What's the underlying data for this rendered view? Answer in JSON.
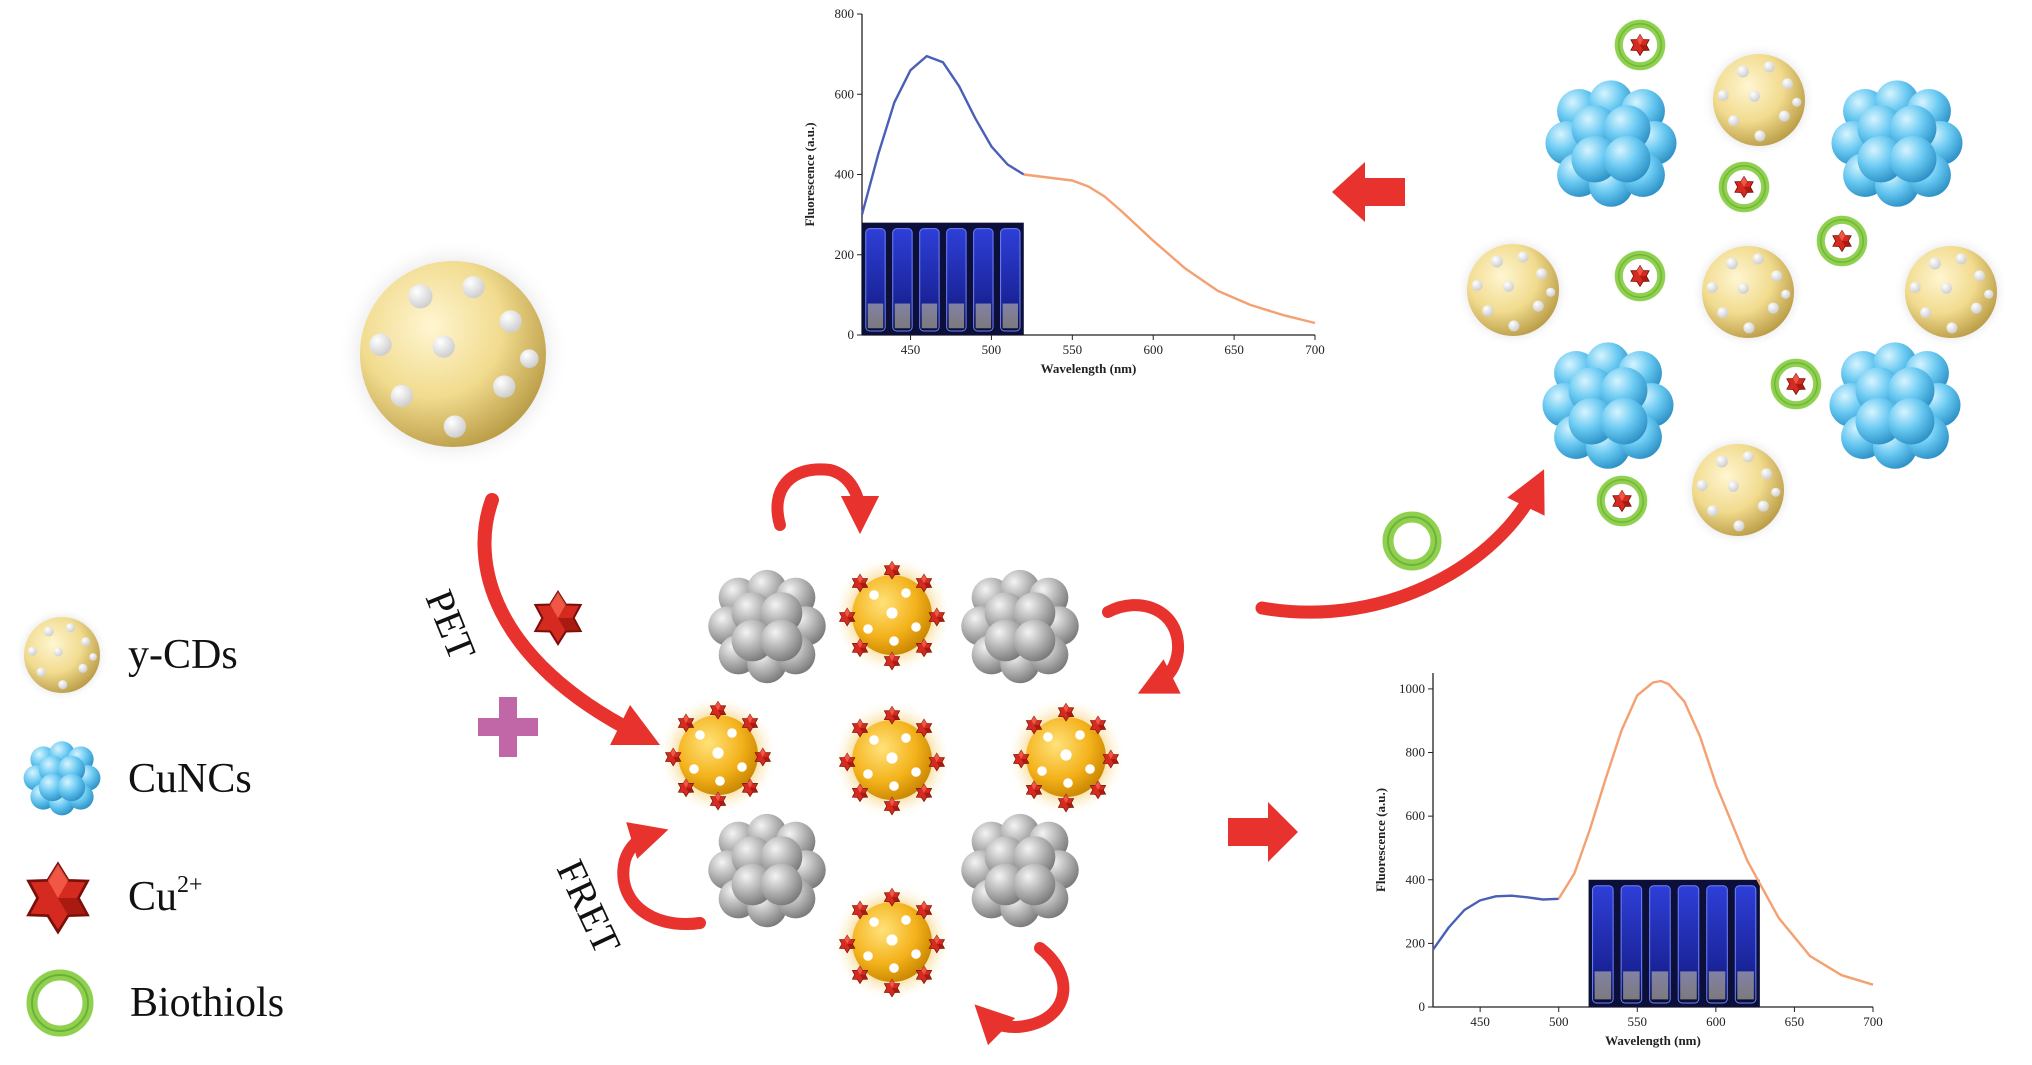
{
  "legend": {
    "items": [
      {
        "label": "y-CDs",
        "icon": "yellow-carbon-dot-icon"
      },
      {
        "label": "CuNCs",
        "icon": "blue-copper-nanocluster-icon"
      },
      {
        "label": "Cu",
        "superscript": "2+",
        "icon": "red-star-copper-ion-icon"
      },
      {
        "label": "Biothiols",
        "icon": "green-ring-biothiol-icon"
      }
    ]
  },
  "mechanisms": {
    "pet": "PET",
    "fret": "FRET"
  },
  "colors": {
    "ycd": "#f0d98a",
    "cuncs": "#5ec3f0",
    "cu_ion": "#d42a1f",
    "biothiol": "#8fd14f",
    "gray_cluster": "#a7a7a7",
    "arrow": "#e8322e",
    "plus": "#c167a8",
    "blue_curve": "#4a5fb8",
    "orange_curve": "#f5a070"
  },
  "chart_data": [
    {
      "type": "line",
      "xlabel": "Wavelength (nm)",
      "ylabel": "Fluorescence (a.u.)",
      "xlim": [
        420,
        700
      ],
      "ylim": [
        0,
        800
      ],
      "xticks": [
        450,
        500,
        550,
        600,
        650,
        700
      ],
      "yticks": [
        0,
        200,
        400,
        600,
        800
      ],
      "series": [
        {
          "color": "#4a5fb8",
          "x": [
            420,
            430,
            440,
            450,
            460,
            470,
            480,
            490,
            500,
            510,
            520
          ],
          "y": [
            300,
            450,
            580,
            660,
            695,
            680,
            620,
            540,
            470,
            425,
            400
          ]
        },
        {
          "color": "#f5a070",
          "x": [
            520,
            530,
            540,
            550,
            560,
            570,
            580,
            600,
            620,
            640,
            660,
            680,
            700
          ],
          "y": [
            400,
            395,
            390,
            385,
            370,
            345,
            310,
            235,
            165,
            110,
            75,
            50,
            30
          ]
        }
      ]
    },
    {
      "type": "line",
      "xlabel": "Wavelength (nm)",
      "ylabel": "Fluorescence (a.u.)",
      "xlim": [
        420,
        700
      ],
      "ylim": [
        0,
        1050
      ],
      "xticks": [
        450,
        500,
        550,
        600,
        650,
        700
      ],
      "yticks": [
        0,
        200,
        400,
        600,
        800,
        1000
      ],
      "series": [
        {
          "color": "#4a5fb8",
          "x": [
            420,
            430,
            440,
            450,
            460,
            470,
            480,
            490,
            500
          ],
          "y": [
            180,
            250,
            305,
            335,
            348,
            350,
            345,
            338,
            340
          ]
        },
        {
          "color": "#f5a070",
          "x": [
            500,
            510,
            520,
            530,
            540,
            550,
            560,
            565,
            570,
            580,
            590,
            600,
            620,
            640,
            660,
            680,
            700
          ],
          "y": [
            340,
            420,
            560,
            720,
            870,
            980,
            1020,
            1025,
            1015,
            960,
            850,
            700,
            460,
            280,
            160,
            100,
            70
          ]
        }
      ]
    }
  ]
}
